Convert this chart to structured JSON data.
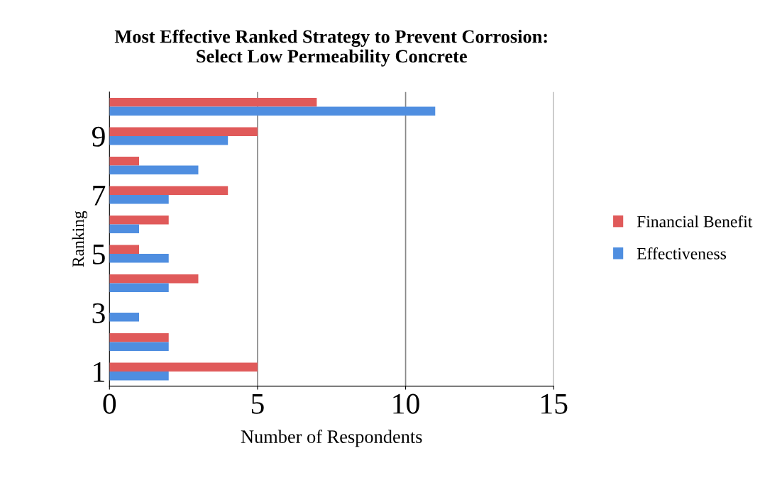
{
  "chart_data": {
    "type": "bar",
    "orientation": "horizontal",
    "title": "Most Effective Ranked Strategy to Prevent Corrosion:\nSelect Low Permeability Concrete",
    "xlabel": "Number of Respondents",
    "ylabel": "Ranking",
    "categories": [
      null,
      "9",
      null,
      "7",
      null,
      "5",
      null,
      "3",
      null,
      "1"
    ],
    "series": [
      {
        "name": "Financial Benefit",
        "color": "#e05a5a",
        "values": [
          7,
          5,
          1,
          4,
          2,
          1,
          3,
          0,
          2,
          5
        ]
      },
      {
        "name": "Effectiveness",
        "color": "#4f8ee0",
        "values": [
          11,
          4,
          3,
          2,
          1,
          2,
          2,
          1,
          2,
          2
        ]
      }
    ],
    "xlim": [
      0,
      15
    ],
    "xticks": [
      0,
      5,
      10,
      15
    ],
    "grid": "x",
    "legend": "right"
  }
}
